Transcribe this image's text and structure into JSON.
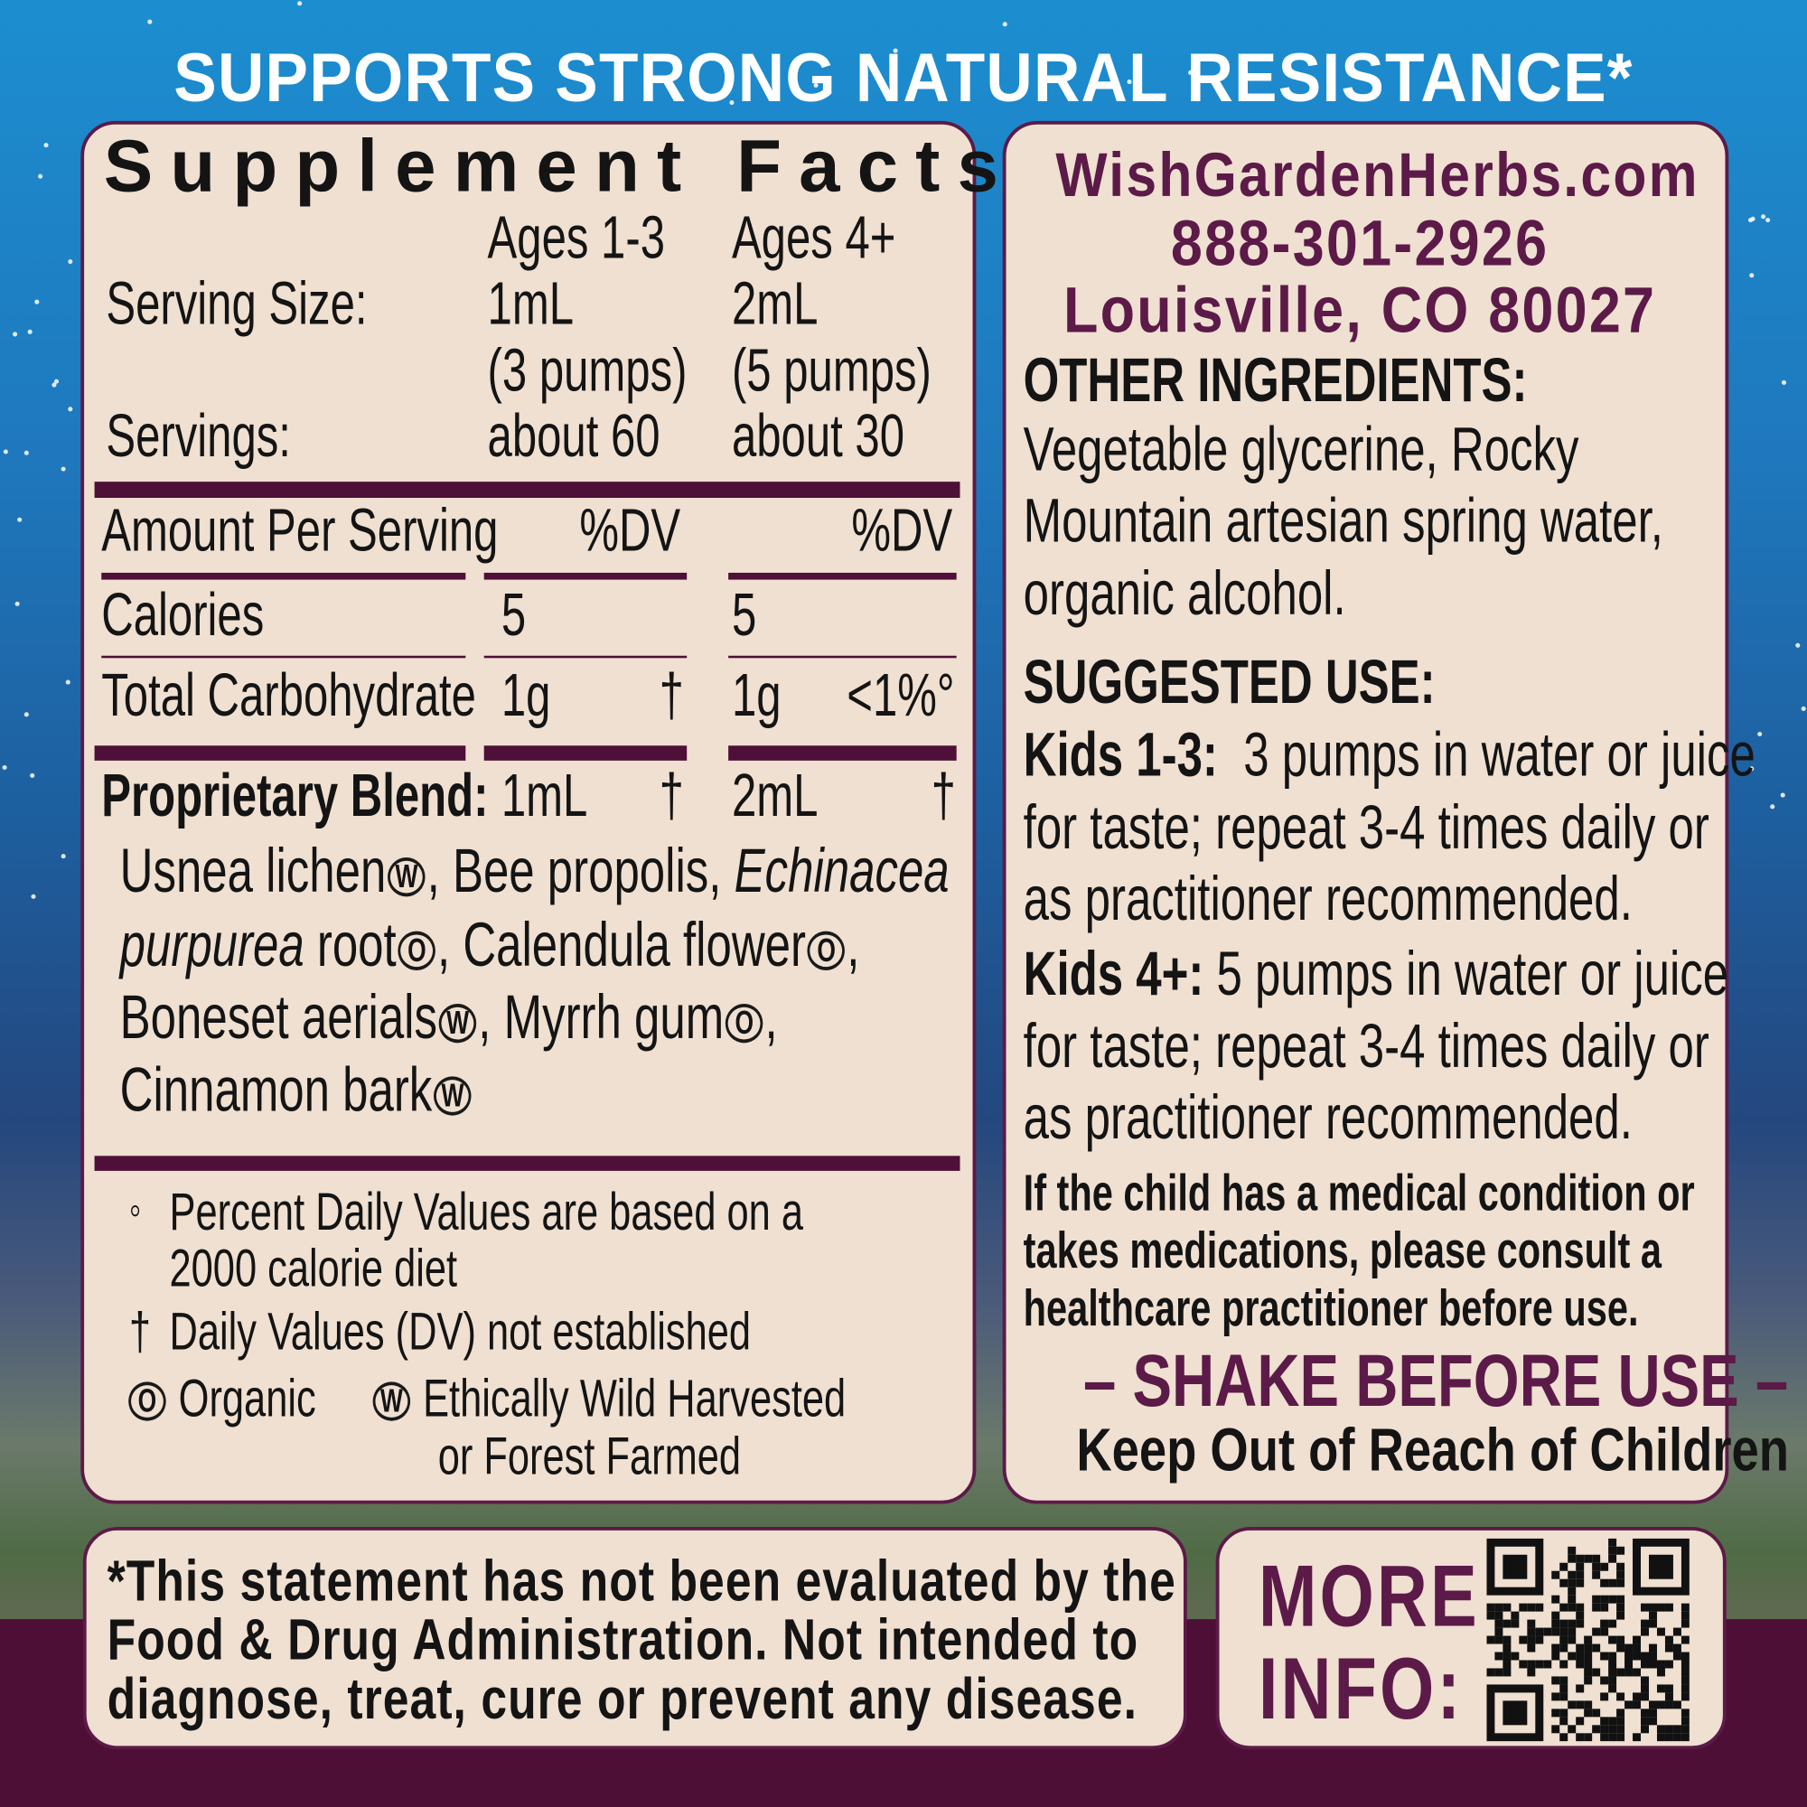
{
  "headline": "SUPPORTS STRONG NATURAL RESISTANCE*",
  "facts": {
    "title": "Supplement Facts",
    "col1_header": "Ages 1-3",
    "col2_header": "Ages 4+",
    "serving_size_label": "Serving Size:",
    "serving_size_1": "1mL",
    "serving_size_2": "2mL",
    "pumps_1": "(3 pumps)",
    "pumps_2": "(5 pumps)",
    "servings_label": "Servings:",
    "servings_1": "about 60",
    "servings_2": "about 30",
    "amount_label": "Amount Per Serving",
    "dv_1": "%DV",
    "dv_2": "%DV",
    "calories_label": "Calories",
    "calories_1": "5",
    "calories_2": "5",
    "carb_label": "Total Carbohydrate",
    "carb_1": "1g",
    "carb_1_dv": "†",
    "carb_2": "1g",
    "carb_2_dv": "<1%°",
    "blend_label": "Proprietary Blend:",
    "blend_1": "1mL",
    "blend_1_dv": "†",
    "blend_2": "2mL",
    "blend_2_dv": "†",
    "ingredients": {
      "usnea": "Usnea lichen",
      "bee": ", Bee propolis, ",
      "echinacea": "Echinacea",
      "purpurea": "purpurea",
      "root": " root",
      "calendula": ", Calendula flower",
      "boneset": "Boneset aerials",
      "myrrh": ", Myrrh gum",
      "comma": ",",
      "cinnamon": "Cinnamon bark",
      "w": "W",
      "o": "O"
    },
    "footnote_dv_1": "Percent Daily Values are based on a",
    "footnote_dv_2": "2000 calorie diet",
    "footnote_dv_mark": "◦",
    "footnote_dagger_mark": "†",
    "footnote_dagger": "Daily Values (DV) not established",
    "legend_organic": "Organic",
    "legend_wild_1": "Ethically Wild Harvested",
    "legend_wild_2": "or Forest Farmed"
  },
  "contact": {
    "website": "WishGardenHerbs.com",
    "phone": "888-301-2926",
    "address": "Louisville, CO 80027"
  },
  "other_ingredients": {
    "heading": "OTHER INGREDIENTS:",
    "lines": [
      "Vegetable glycerine, Rocky",
      "Mountain artesian spring water,",
      "organic alcohol."
    ]
  },
  "suggested_use": {
    "heading": "SUGGESTED USE:",
    "kids13_label": "Kids 1-3:",
    "kids13_lines": [
      "3 pumps in water or juice",
      "for taste; repeat 3-4 times daily or",
      "as practitioner recommended."
    ],
    "kids4_label": "Kids 4+:",
    "kids4_lines": [
      "5 pumps in water or juice",
      "for taste; repeat 3-4 times daily or",
      "as practitioner recommended."
    ]
  },
  "warning": [
    "If the child has a medical condition or",
    "takes medications, please consult a",
    "healthcare practitioner before use."
  ],
  "shake": "– SHAKE BEFORE USE –",
  "keep_out": "Keep Out of Reach of Children",
  "disclaimer": [
    "*This statement has not been evaluated by the",
    "Food & Drug Administration. Not intended to",
    "diagnose, treat, cure or prevent any disease."
  ],
  "more_info": {
    "line1": "MORE",
    "line2": "INFO:"
  },
  "colors": {
    "brand_purple": "#5c1a48",
    "band": "#4d0f36",
    "panel": "#efe0d1",
    "sky": "#1c8ed0"
  }
}
